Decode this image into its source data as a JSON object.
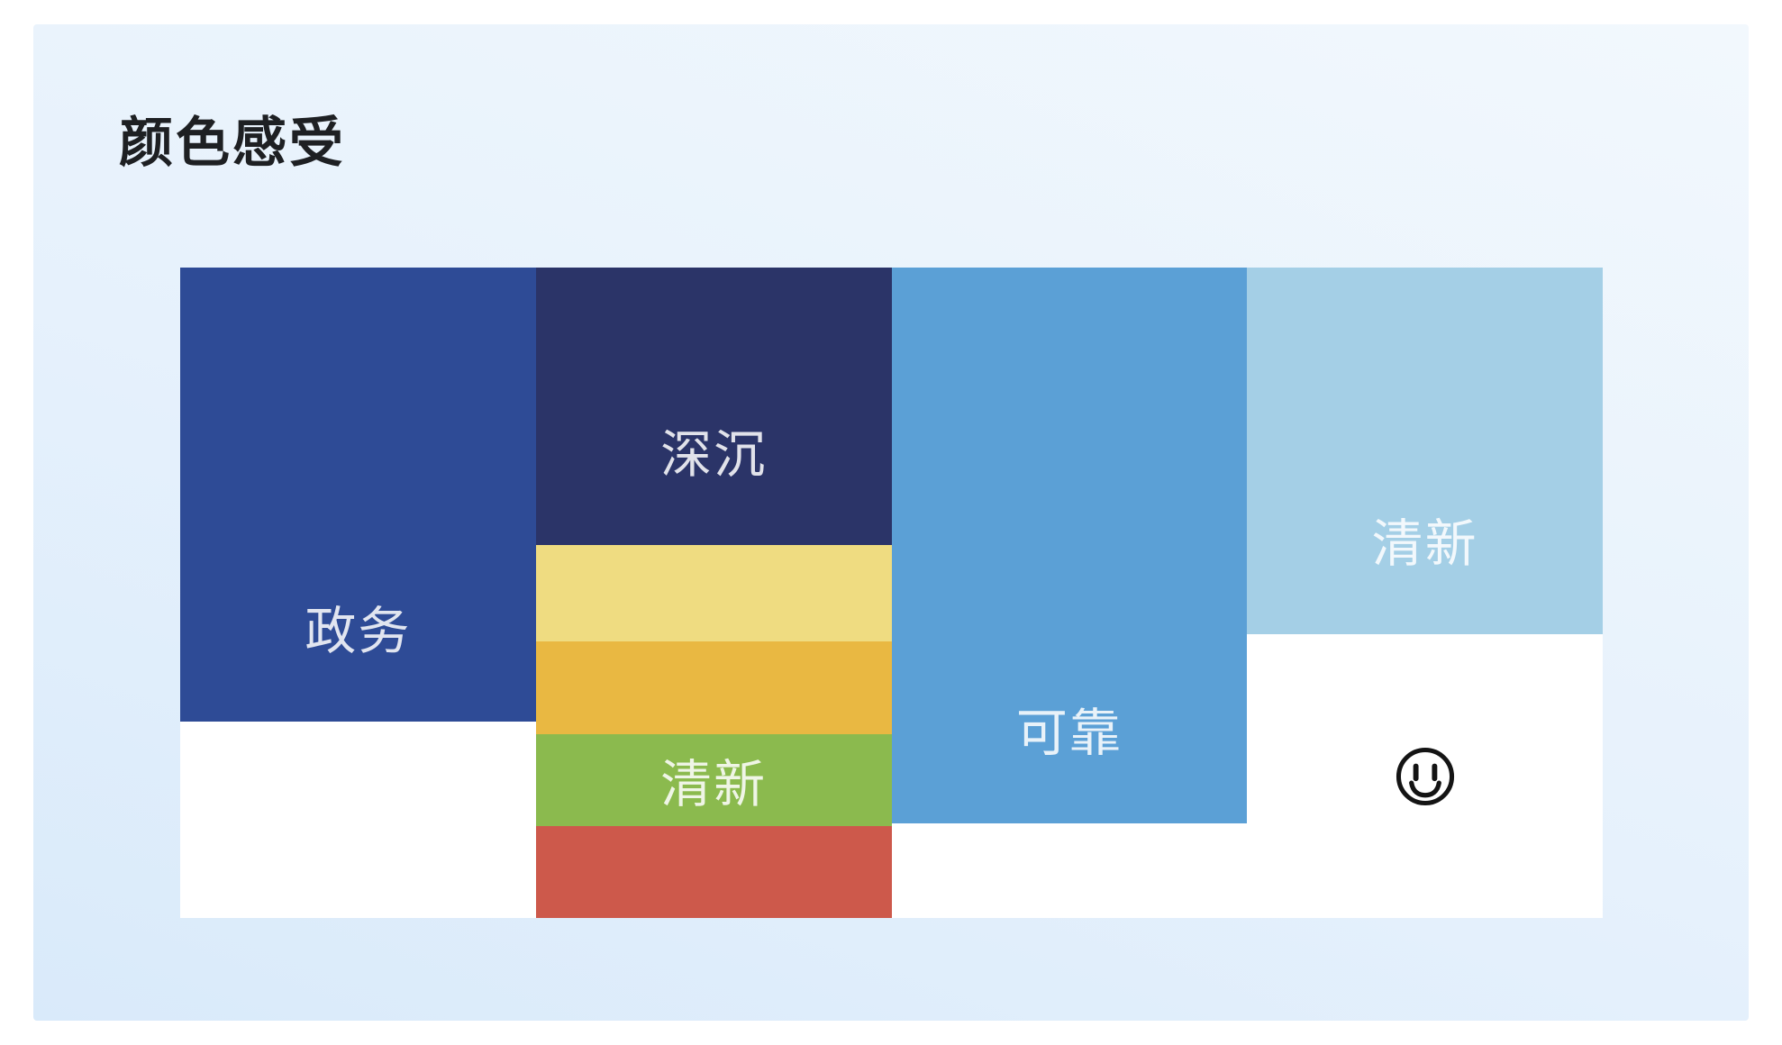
{
  "title": "颜色感受",
  "colors": {
    "page_bg": "#ffffff",
    "panel_top": "#f2f8fd",
    "panel_bottom": "#d9eafa",
    "board_bg": "#ffffff",
    "title": "#1e2023",
    "label": "rgba(255,255,255,0.86)",
    "smiley": "#141414"
  },
  "board": {
    "columns": [
      {
        "blocks": [
          {
            "label": "政务",
            "color": "#2e4b96",
            "height": "69.8%",
            "align": "bottom"
          }
        ]
      },
      {
        "blocks": [
          {
            "label": "深沉",
            "color": "#2b3468",
            "height": "42.7%",
            "align": "bottom"
          },
          {
            "label": "",
            "color": "#efdc81",
            "height": "14.8%"
          },
          {
            "label": "",
            "color": "#e9b842",
            "height": "14.3%"
          },
          {
            "label": "清新",
            "color": "#8bba4e",
            "height": "14.1%",
            "align": "center"
          },
          {
            "label": "",
            "color": "#cd594b",
            "height": "14.1%"
          }
        ]
      },
      {
        "blocks": [
          {
            "label": "可靠",
            "color": "#5ba0d6",
            "height": "85.5%",
            "align": "bottom"
          }
        ]
      },
      {
        "blocks": [
          {
            "label": "清新",
            "color": "#a4cfe6",
            "height": "56.4%",
            "align": "bottom"
          }
        ],
        "icon": "smiley-face"
      }
    ]
  }
}
